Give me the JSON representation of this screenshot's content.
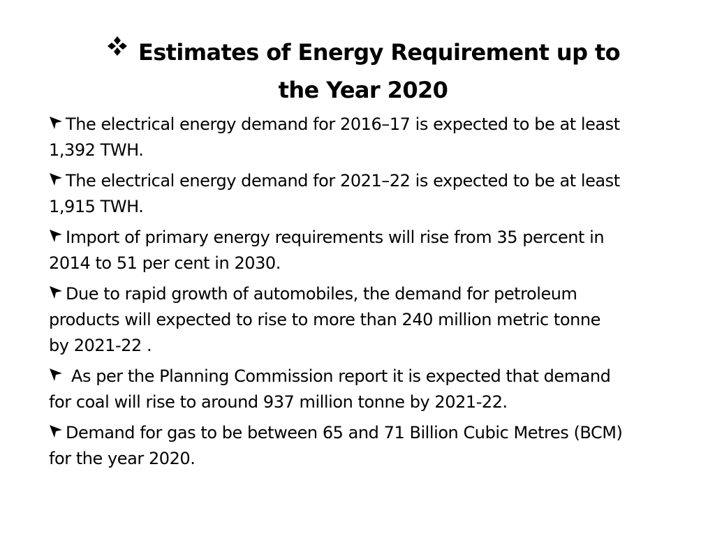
{
  "slide": {
    "title_line1": "Estimates of Energy Requirement up to",
    "title_line2": "the Year 2020",
    "title_bullet_icon": "four-diamond-bullet",
    "bullet_icon": "arrowhead-bullet",
    "items": [
      {
        "line1": "The electrical energy demand for 2016–17 is expected to be at least",
        "line2": "1,392 TWH."
      },
      {
        "line1": "The electrical energy demand for 2021–22 is expected to be at least",
        "line2": "1,915 TWH."
      },
      {
        "line1": "Import of primary energy requirements will rise from 35 percent in",
        "line2": "2014 to 51 per cent in 2030."
      },
      {
        "line1": "Due to rapid growth of automobiles, the demand for petroleum",
        "line2": "products will expected to rise to more than 240 million metric tonne",
        "line3": "by 2021-22 ."
      },
      {
        "line1": "As per the Planning Commission report it is expected that demand",
        "line2": "for coal will rise to around 937 million tonne by 2021-22."
      },
      {
        "line1": "Demand for gas to be between 65 and 71 Billion Cubic Metres (BCM)",
        "line2": "for the year 2020."
      }
    ]
  }
}
